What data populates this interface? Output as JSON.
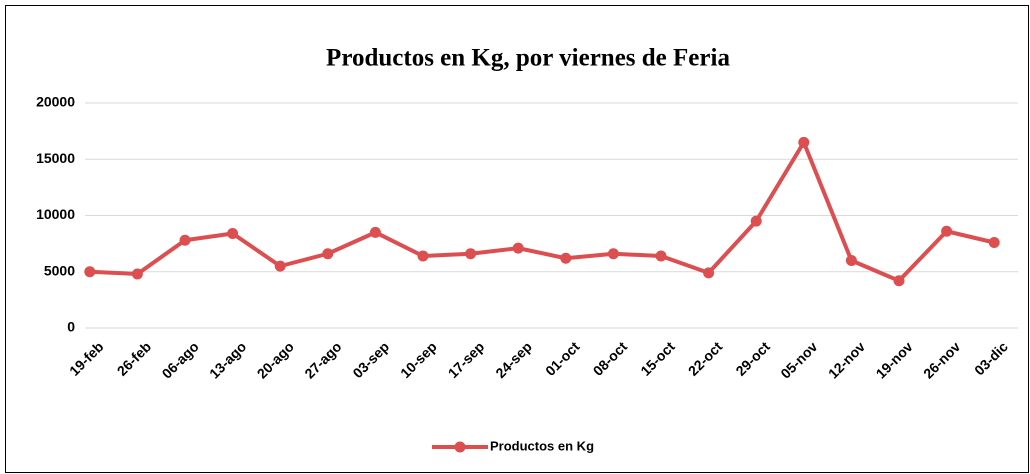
{
  "chart_data": {
    "type": "line",
    "title": "Productos en Kg, por viernes de Feria",
    "categories": [
      "19-feb",
      "26-feb",
      "06-ago",
      "13-ago",
      "20-ago",
      "27-ago",
      "03-sep",
      "10-sep",
      "17-sep",
      "24-sep",
      "01-oct",
      "08-oct",
      "15-oct",
      "22-oct",
      "29-oct",
      "05-nov",
      "12-nov",
      "19-nov",
      "26-nov",
      "03-dic"
    ],
    "series": [
      {
        "name": "Productos en Kg",
        "color": "#dc4e50",
        "values": [
          5000,
          4800,
          7800,
          8400,
          5500,
          6600,
          8500,
          6400,
          6600,
          7100,
          6200,
          6600,
          6400,
          4900,
          9500,
          16500,
          6000,
          4200,
          8600,
          7600
        ]
      }
    ],
    "ylim": [
      0,
      20000
    ],
    "yticks": [
      0,
      5000,
      10000,
      15000,
      20000
    ],
    "grid": true,
    "legend": "bottom"
  }
}
